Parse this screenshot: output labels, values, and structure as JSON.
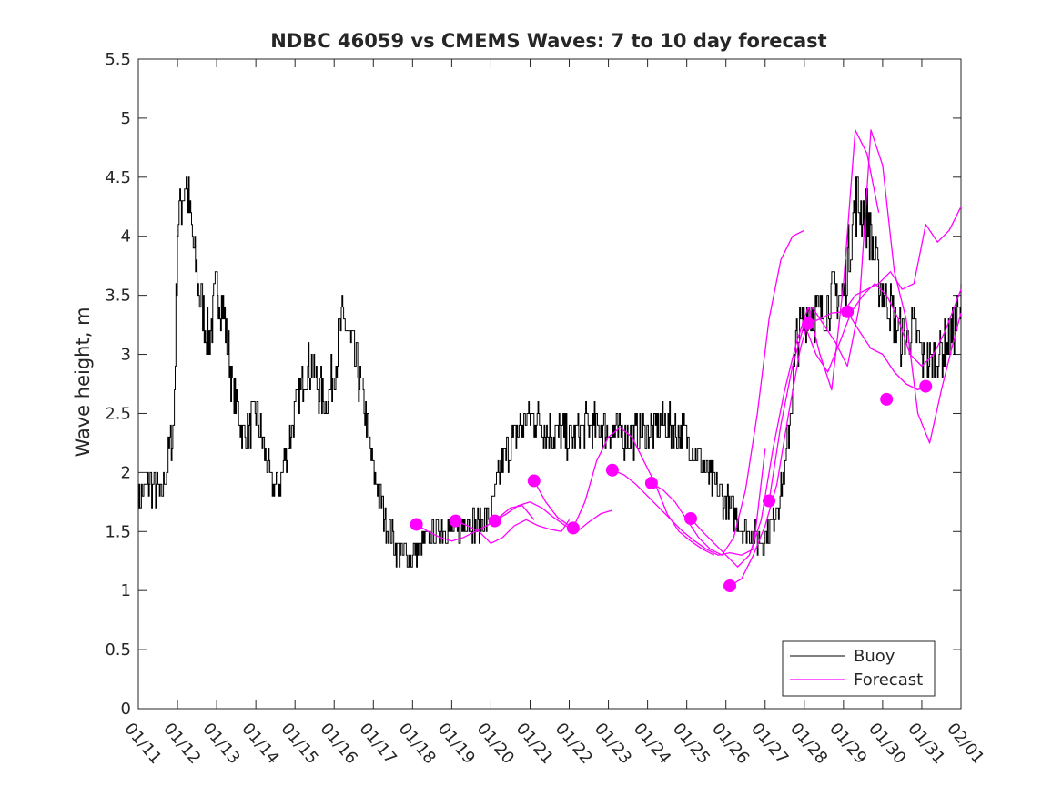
{
  "chart_data": {
    "type": "line",
    "title": "NDBC 46059 vs CMEMS Waves: 7 to 10 day forecast",
    "xlabel": "",
    "ylabel": "Wave height, m",
    "ylim": [
      0,
      5.5
    ],
    "xlim": [
      0,
      21
    ],
    "yticks": [
      0,
      0.5,
      1,
      1.5,
      2,
      2.5,
      3,
      3.5,
      4,
      4.5,
      5,
      5.5
    ],
    "ytick_labels": [
      "0",
      "0.5",
      "1",
      "1.5",
      "2",
      "2.5",
      "3",
      "3.5",
      "4",
      "4.5",
      "5",
      "5.5"
    ],
    "xtick_labels": [
      "01/11",
      "01/12",
      "01/13",
      "01/14",
      "01/15",
      "01/16",
      "01/17",
      "01/18",
      "01/19",
      "01/20",
      "01/21",
      "01/22",
      "01/23",
      "01/24",
      "01/25",
      "01/26",
      "01/27",
      "01/28",
      "01/29",
      "01/30",
      "01/31",
      "02/01"
    ],
    "legend": {
      "position": "bottom-right",
      "entries": [
        "Buoy",
        "Forecast"
      ]
    },
    "colors": {
      "buoy": "#000000",
      "forecast": "#ff00ff",
      "axes": "#262626"
    },
    "series": [
      {
        "name": "Buoy",
        "x": [
          0,
          0.3,
          0.6,
          0.9,
          1.0,
          1.2,
          1.5,
          1.8,
          2.0,
          2.2,
          2.4,
          2.7,
          3.0,
          3.2,
          3.4,
          3.6,
          3.8,
          4.0,
          4.2,
          4.4,
          4.6,
          4.8,
          5.0,
          5.2,
          5.5,
          5.8,
          6.0,
          6.3,
          6.6,
          6.9,
          7.2,
          7.5,
          7.8,
          8.1,
          8.4,
          8.7,
          9.0,
          9.3,
          9.6,
          10.0,
          10.5,
          11.0,
          11.5,
          12.0,
          12.5,
          13.0,
          13.5,
          14.0,
          14.5,
          15.0,
          15.3,
          15.6,
          15.9,
          16.2,
          16.5,
          16.8,
          17.1,
          17.4,
          17.7,
          18.0,
          18.3,
          18.6,
          18.9,
          19.2,
          19.5,
          19.8,
          20.1,
          20.4,
          20.7,
          21.0
        ],
        "y": [
          1.8,
          1.9,
          1.8,
          2.4,
          4.1,
          4.5,
          3.6,
          3.1,
          3.6,
          3.3,
          2.7,
          2.3,
          2.5,
          2.2,
          1.9,
          1.9,
          2.2,
          2.5,
          2.8,
          2.9,
          2.7,
          2.6,
          2.9,
          3.3,
          3.0,
          2.5,
          2.0,
          1.6,
          1.35,
          1.3,
          1.35,
          1.5,
          1.55,
          1.5,
          1.6,
          1.55,
          1.65,
          2.1,
          2.3,
          2.5,
          2.35,
          2.3,
          2.4,
          2.35,
          2.3,
          2.35,
          2.4,
          2.3,
          2.0,
          1.75,
          1.6,
          1.5,
          1.4,
          1.6,
          2.0,
          3.1,
          3.4,
          3.3,
          3.5,
          3.5,
          4.3,
          4.2,
          3.6,
          3.4,
          3.1,
          3.2,
          2.9,
          3.0,
          3.1,
          3.4
        ]
      },
      {
        "name": "Forecast",
        "runs": [
          {
            "x": [
              7.1,
              7.4,
              7.7,
              8.0,
              8.3,
              8.6,
              8.9,
              9.2,
              9.5,
              9.8,
              10.1
            ],
            "y": [
              1.56,
              1.5,
              1.45,
              1.42,
              1.45,
              1.5,
              1.55,
              1.62,
              1.7,
              1.72,
              1.6
            ]
          },
          {
            "x": [
              8.1,
              8.4,
              8.7,
              9.0,
              9.3,
              9.6,
              9.9,
              10.2,
              10.5,
              10.8,
              11.0
            ],
            "y": [
              1.59,
              1.55,
              1.5,
              1.4,
              1.45,
              1.55,
              1.6,
              1.55,
              1.52,
              1.5,
              1.6
            ]
          },
          {
            "x": [
              9.1,
              9.4,
              9.7,
              10.0,
              10.3,
              10.6,
              10.9,
              11.2,
              11.5,
              11.8,
              12.1
            ],
            "y": [
              1.59,
              1.65,
              1.72,
              1.75,
              1.7,
              1.62,
              1.55,
              1.5,
              1.58,
              1.65,
              1.68
            ]
          },
          {
            "x": [
              10.1,
              10.4,
              10.7,
              11.0
            ],
            "y": [
              1.93,
              1.75,
              1.62,
              1.55
            ]
          },
          {
            "x": [
              11.1,
              11.4,
              11.7,
              12.0,
              12.3,
              12.6,
              12.9,
              13.2,
              13.5,
              13.8,
              14.1,
              14.4,
              14.7
            ],
            "y": [
              1.53,
              1.75,
              2.1,
              2.3,
              2.38,
              2.3,
              2.1,
              1.9,
              1.65,
              1.5,
              1.42,
              1.35,
              1.3
            ]
          },
          {
            "x": [
              12.1,
              12.4,
              12.7,
              13.0,
              13.3,
              13.6,
              13.9,
              14.2,
              14.5,
              14.8,
              15.1,
              15.4,
              15.7,
              16.0
            ],
            "y": [
              2.02,
              1.98,
              1.9,
              1.8,
              1.7,
              1.6,
              1.5,
              1.42,
              1.35,
              1.3,
              1.32,
              1.3,
              1.35,
              2.2
            ]
          },
          {
            "x": [
              13.1,
              13.4,
              13.7,
              14.0,
              14.3,
              14.6,
              14.9,
              15.2,
              15.5,
              15.8,
              16.1,
              16.4,
              16.7,
              17.0
            ],
            "y": [
              1.91,
              1.85,
              1.75,
              1.6,
              1.45,
              1.35,
              1.3,
              1.45,
              1.85,
              2.5,
              3.3,
              3.8,
              4.0,
              4.05
            ]
          },
          {
            "x": [
              14.1,
              14.4,
              14.7,
              15.0,
              15.3,
              15.6,
              15.9,
              16.2,
              16.5,
              16.8,
              17.1,
              17.4,
              17.7,
              18.0,
              18.3,
              18.6,
              18.9
            ],
            "y": [
              1.61,
              1.5,
              1.4,
              1.3,
              1.2,
              1.3,
              1.6,
              2.2,
              2.7,
              3.1,
              3.4,
              3.0,
              2.7,
              3.6,
              4.9,
              4.7,
              4.2
            ]
          },
          {
            "x": [
              15.1,
              15.4,
              15.7,
              16.0,
              16.3,
              16.6,
              16.9,
              17.2,
              17.5,
              17.8,
              18.1,
              18.4,
              18.7,
              19.0,
              19.3,
              19.6,
              19.9,
              20.2,
              20.5,
              20.8,
              21.0
            ],
            "y": [
              1.04,
              1.1,
              1.3,
              1.55,
              1.9,
              2.5,
              3.05,
              3.4,
              3.25,
              3.1,
              2.9,
              3.4,
              4.9,
              4.6,
              3.7,
              3.3,
              2.5,
              2.25,
              2.7,
              3.1,
              3.35
            ]
          },
          {
            "x": [
              16.1,
              16.4,
              16.7,
              17.0,
              17.3,
              17.6,
              17.9,
              18.2,
              18.5,
              18.8,
              19.1,
              19.4,
              19.7,
              20.0,
              20.3,
              20.6,
              21.0
            ],
            "y": [
              1.76,
              2.4,
              2.9,
              3.26,
              3.0,
              2.85,
              3.1,
              3.36,
              3.5,
              3.6,
              3.5,
              3.3,
              3.0,
              2.9,
              3.0,
              3.2,
              3.55
            ]
          },
          {
            "x": [
              17.1,
              17.4,
              17.7,
              18.0,
              18.3,
              18.6,
              18.9,
              19.2,
              19.5,
              19.8,
              20.1,
              20.4,
              20.7,
              21.0
            ],
            "y": [
              3.26,
              3.3,
              3.35,
              3.36,
              3.5,
              3.55,
              3.6,
              3.7,
              3.55,
              3.6,
              4.1,
              3.95,
              4.05,
              4.25
            ]
          },
          {
            "x": [
              18.1,
              18.4,
              18.7,
              19.0,
              19.3,
              19.6,
              19.9,
              20.2
            ],
            "y": [
              3.36,
              3.2,
              3.05,
              3.0,
              2.85,
              2.75,
              2.7,
              2.75
            ]
          }
        ],
        "markers": {
          "x": [
            7.1,
            8.1,
            9.1,
            10.1,
            11.1,
            12.1,
            13.1,
            14.1,
            15.1,
            16.1,
            17.1,
            18.1,
            19.1,
            20.1
          ],
          "y": [
            1.56,
            1.59,
            1.59,
            1.93,
            1.53,
            2.02,
            1.91,
            1.61,
            1.04,
            1.76,
            3.26,
            3.36,
            2.62,
            2.73
          ]
        }
      }
    ]
  }
}
